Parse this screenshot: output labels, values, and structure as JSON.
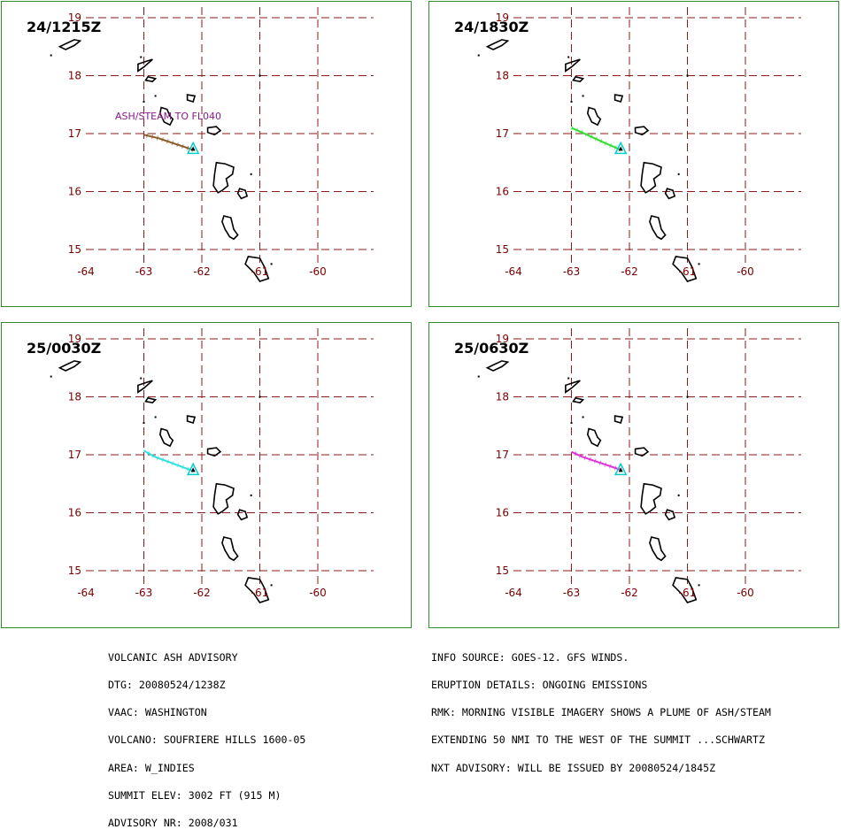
{
  "map": {
    "lat_labels": [
      "19",
      "18",
      "17",
      "16",
      "15"
    ],
    "lon_labels": [
      "-64",
      "-63",
      "-62",
      "-61",
      "-60"
    ],
    "lat_values": [
      19,
      18,
      17,
      16,
      15
    ],
    "lon_values": [
      -64,
      -63,
      -62,
      -61,
      -60
    ],
    "grid_color": "#8b1a1a",
    "coast_color": "#000000",
    "volcano_color": "#00cccc"
  },
  "panels": [
    {
      "time": "24/1215Z",
      "plume_color": "#8b5a2b",
      "plume_label": "ASH/STEAM TO FL040",
      "plume": [
        [
          -62.15,
          16.72
        ],
        [
          -62.45,
          16.82
        ],
        [
          -62.75,
          16.92
        ],
        [
          -63.0,
          16.98
        ]
      ]
    },
    {
      "time": "24/1830Z",
      "plume_color": "#33dd33",
      "plume_label": "",
      "plume": [
        [
          -62.15,
          16.72
        ],
        [
          -62.45,
          16.85
        ],
        [
          -62.75,
          16.99
        ],
        [
          -63.0,
          17.1
        ]
      ]
    },
    {
      "time": "25/0030Z",
      "plume_color": "#33e0e0",
      "plume_label": "",
      "plume": [
        [
          -62.15,
          16.72
        ],
        [
          -62.5,
          16.85
        ],
        [
          -62.8,
          16.96
        ],
        [
          -63.0,
          17.07
        ]
      ]
    },
    {
      "time": "25/0630Z",
      "plume_color": "#dd33dd",
      "plume_label": "",
      "plume": [
        [
          -62.15,
          16.74
        ],
        [
          -62.5,
          16.86
        ],
        [
          -62.8,
          16.96
        ],
        [
          -63.0,
          17.05
        ]
      ]
    }
  ],
  "advisory": {
    "left_lines": [
      "VOLCANIC ASH ADVISORY",
      "DTG: 20080524/1238Z",
      "VAAC: WASHINGTON",
      "VOLCANO: SOUFRIERE HILLS 1600-05",
      "AREA: W_INDIES",
      "SUMMIT ELEV: 3002 FT (915 M)",
      "ADVISORY NR: 2008/031"
    ],
    "right_lines": [
      "INFO SOURCE: GOES-12. GFS WINDS.",
      "ERUPTION DETAILS: ONGOING EMISSIONS",
      "RMK: MORNING VISIBLE IMAGERY SHOWS A PLUME OF ASH/STEAM",
      "EXTENDING 50 NMI TO THE WEST OF THE SUMMIT ...SCHWARTZ",
      "NXT ADVISORY: WILL BE ISSUED BY 20080524/1845Z"
    ]
  }
}
